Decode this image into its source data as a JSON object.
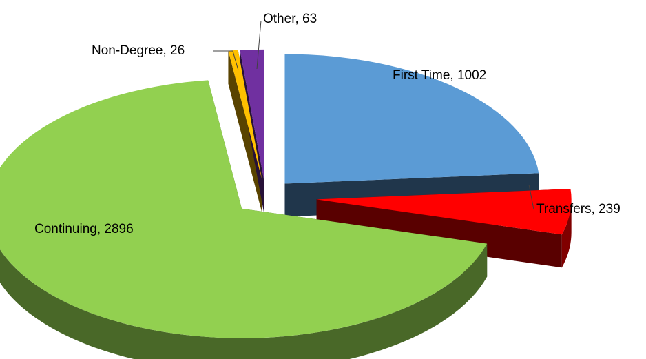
{
  "chart_data": {
    "type": "pie",
    "categories": [
      "First Time",
      "Transfers",
      "Continuing",
      "Non-Degree",
      "Other"
    ],
    "values": [
      1002,
      239,
      2896,
      26,
      63
    ],
    "value_labels": [
      "First Time, 1002",
      "Transfers, 239",
      "Continuing, 2896",
      "Non-Degree, 26",
      "Other, 63"
    ],
    "colors": [
      "#5b9bd5",
      "#ff0000",
      "#92d050",
      "#ffc000",
      "#7030a0"
    ]
  }
}
